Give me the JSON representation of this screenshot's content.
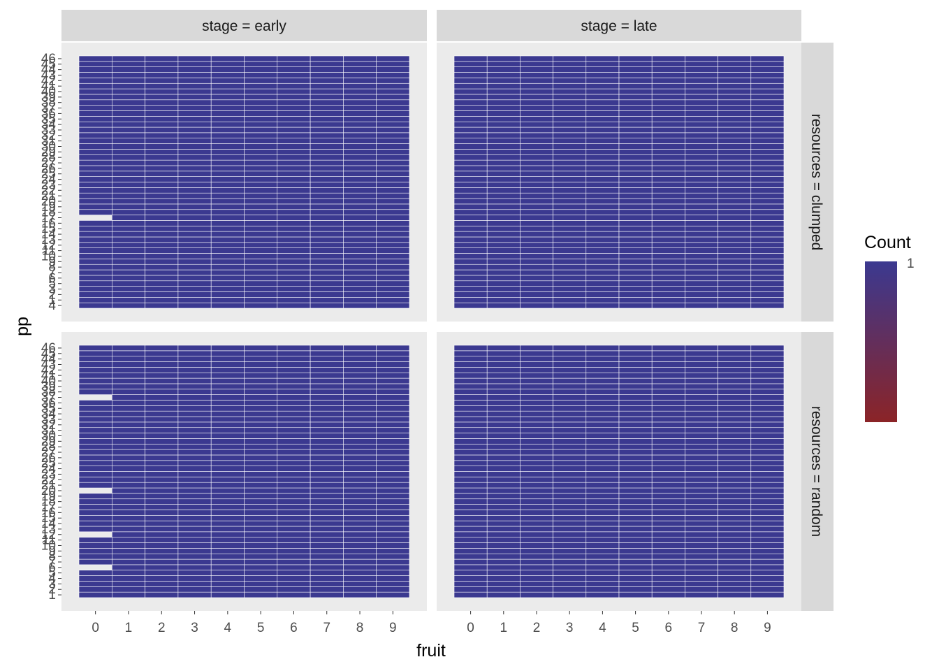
{
  "chart_data": {
    "type": "heatmap",
    "xlabel": "fruit",
    "ylabel": "pp",
    "x_categories": [
      "0",
      "1",
      "2",
      "3",
      "4",
      "5",
      "6",
      "7",
      "8",
      "9"
    ],
    "facet_cols": [
      "stage = early",
      "stage = late"
    ],
    "facet_rows": [
      "resources = clumped",
      "resources = random"
    ],
    "legend": {
      "title": "Count",
      "labels": [
        "1"
      ],
      "position": "right",
      "high_color": "#3b3990",
      "low_color": "#8b2427"
    },
    "fill_color": "#3b3990",
    "panel_background": "#ebebeb",
    "strip_background": "#d9d9d9",
    "panels": [
      {
        "stage": "early",
        "resources": "clumped",
        "y_categories": [
          "4",
          "1",
          "2",
          "3",
          "5",
          "6",
          "7",
          "8",
          "9",
          "10",
          "11",
          "12",
          "13",
          "14",
          "15",
          "16",
          "17",
          "18",
          "19",
          "20",
          "21",
          "22",
          "23",
          "24",
          "25",
          "26",
          "27",
          "28",
          "29",
          "30",
          "31",
          "32",
          "33",
          "34",
          "35",
          "36",
          "37",
          "38",
          "39",
          "40",
          "41",
          "42",
          "43",
          "44",
          "45",
          "46"
        ],
        "missing_cells": [
          {
            "fruit": "0",
            "pp": "17"
          }
        ]
      },
      {
        "stage": "late",
        "resources": "clumped",
        "y_categories": [
          "4",
          "1",
          "2",
          "3",
          "5",
          "6",
          "7",
          "8",
          "9",
          "10",
          "11",
          "12",
          "13",
          "14",
          "15",
          "16",
          "17",
          "18",
          "19",
          "20",
          "21",
          "22",
          "23",
          "24",
          "25",
          "26",
          "27",
          "28",
          "29",
          "30",
          "31",
          "32",
          "33",
          "34",
          "35",
          "36",
          "37",
          "38",
          "39",
          "40",
          "41",
          "42",
          "43",
          "44",
          "45",
          "46"
        ],
        "missing_cells": []
      },
      {
        "stage": "early",
        "resources": "random",
        "y_categories": [
          "1",
          "2",
          "3",
          "4",
          "5",
          "6",
          "7",
          "8",
          "9",
          "10",
          "11",
          "12",
          "13",
          "14",
          "15",
          "16",
          "17",
          "18",
          "19",
          "20",
          "21",
          "22",
          "23",
          "24",
          "25",
          "26",
          "27",
          "28",
          "29",
          "30",
          "31",
          "32",
          "33",
          "34",
          "35",
          "36",
          "37",
          "38",
          "39",
          "40",
          "41",
          "42",
          "43",
          "44",
          "45",
          "46"
        ],
        "missing_cells": [
          {
            "fruit": "0",
            "pp": "6"
          },
          {
            "fruit": "0",
            "pp": "12"
          },
          {
            "fruit": "0",
            "pp": "20"
          },
          {
            "fruit": "0",
            "pp": "37"
          }
        ]
      },
      {
        "stage": "late",
        "resources": "random",
        "y_categories": [
          "1",
          "2",
          "3",
          "4",
          "5",
          "6",
          "7",
          "8",
          "9",
          "10",
          "11",
          "12",
          "13",
          "14",
          "15",
          "16",
          "17",
          "18",
          "19",
          "20",
          "21",
          "22",
          "23",
          "24",
          "25",
          "26",
          "27",
          "28",
          "29",
          "30",
          "31",
          "32",
          "33",
          "34",
          "35",
          "36",
          "37",
          "38",
          "39",
          "40",
          "41",
          "42",
          "43",
          "44",
          "45",
          "46"
        ],
        "missing_cells": []
      }
    ]
  }
}
